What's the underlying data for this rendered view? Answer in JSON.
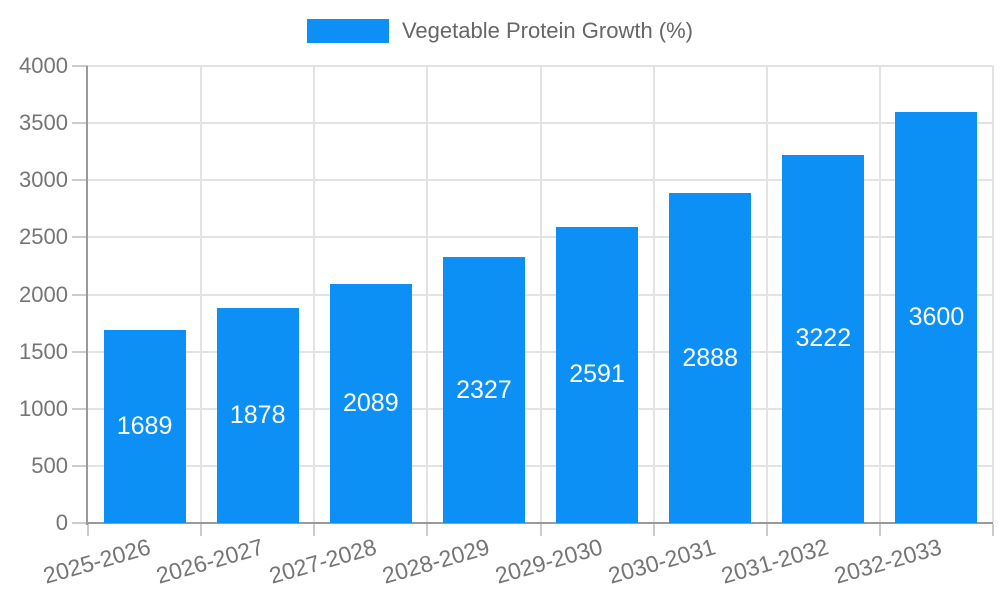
{
  "chart_data": {
    "type": "bar",
    "title": "",
    "legend": "Vegetable Protein Growth (%)",
    "legend_position": "top-center",
    "categories": [
      "2025-2026",
      "2026-2027",
      "2027-2028",
      "2028-2029",
      "2029-2030",
      "2030-2031",
      "2031-2032",
      "2032-2033"
    ],
    "series": [
      {
        "name": "Vegetable Protein Growth (%)",
        "values": [
          1689,
          1878,
          2089,
          2327,
          2591,
          2888,
          3222,
          3600
        ]
      }
    ],
    "values": [
      1689,
      1878,
      2089,
      2327,
      2591,
      2888,
      3222,
      3600
    ],
    "value_labels_shown": true,
    "xlabel": "",
    "ylabel": "",
    "ylim": [
      0,
      4000
    ],
    "yticks": [
      0,
      500,
      1000,
      1500,
      2000,
      2500,
      3000,
      3500,
      4000
    ],
    "xtick_rotation_deg": -16,
    "grid": true,
    "colors": {
      "bar": "#0d90f5",
      "value_label": "#ffffff",
      "grid": "#e3e3e3",
      "tick": "#cccccc",
      "axis": "#9a9a9a",
      "tick_label": "#757575",
      "legend_label": "#666666",
      "background": "#ffffff"
    }
  }
}
